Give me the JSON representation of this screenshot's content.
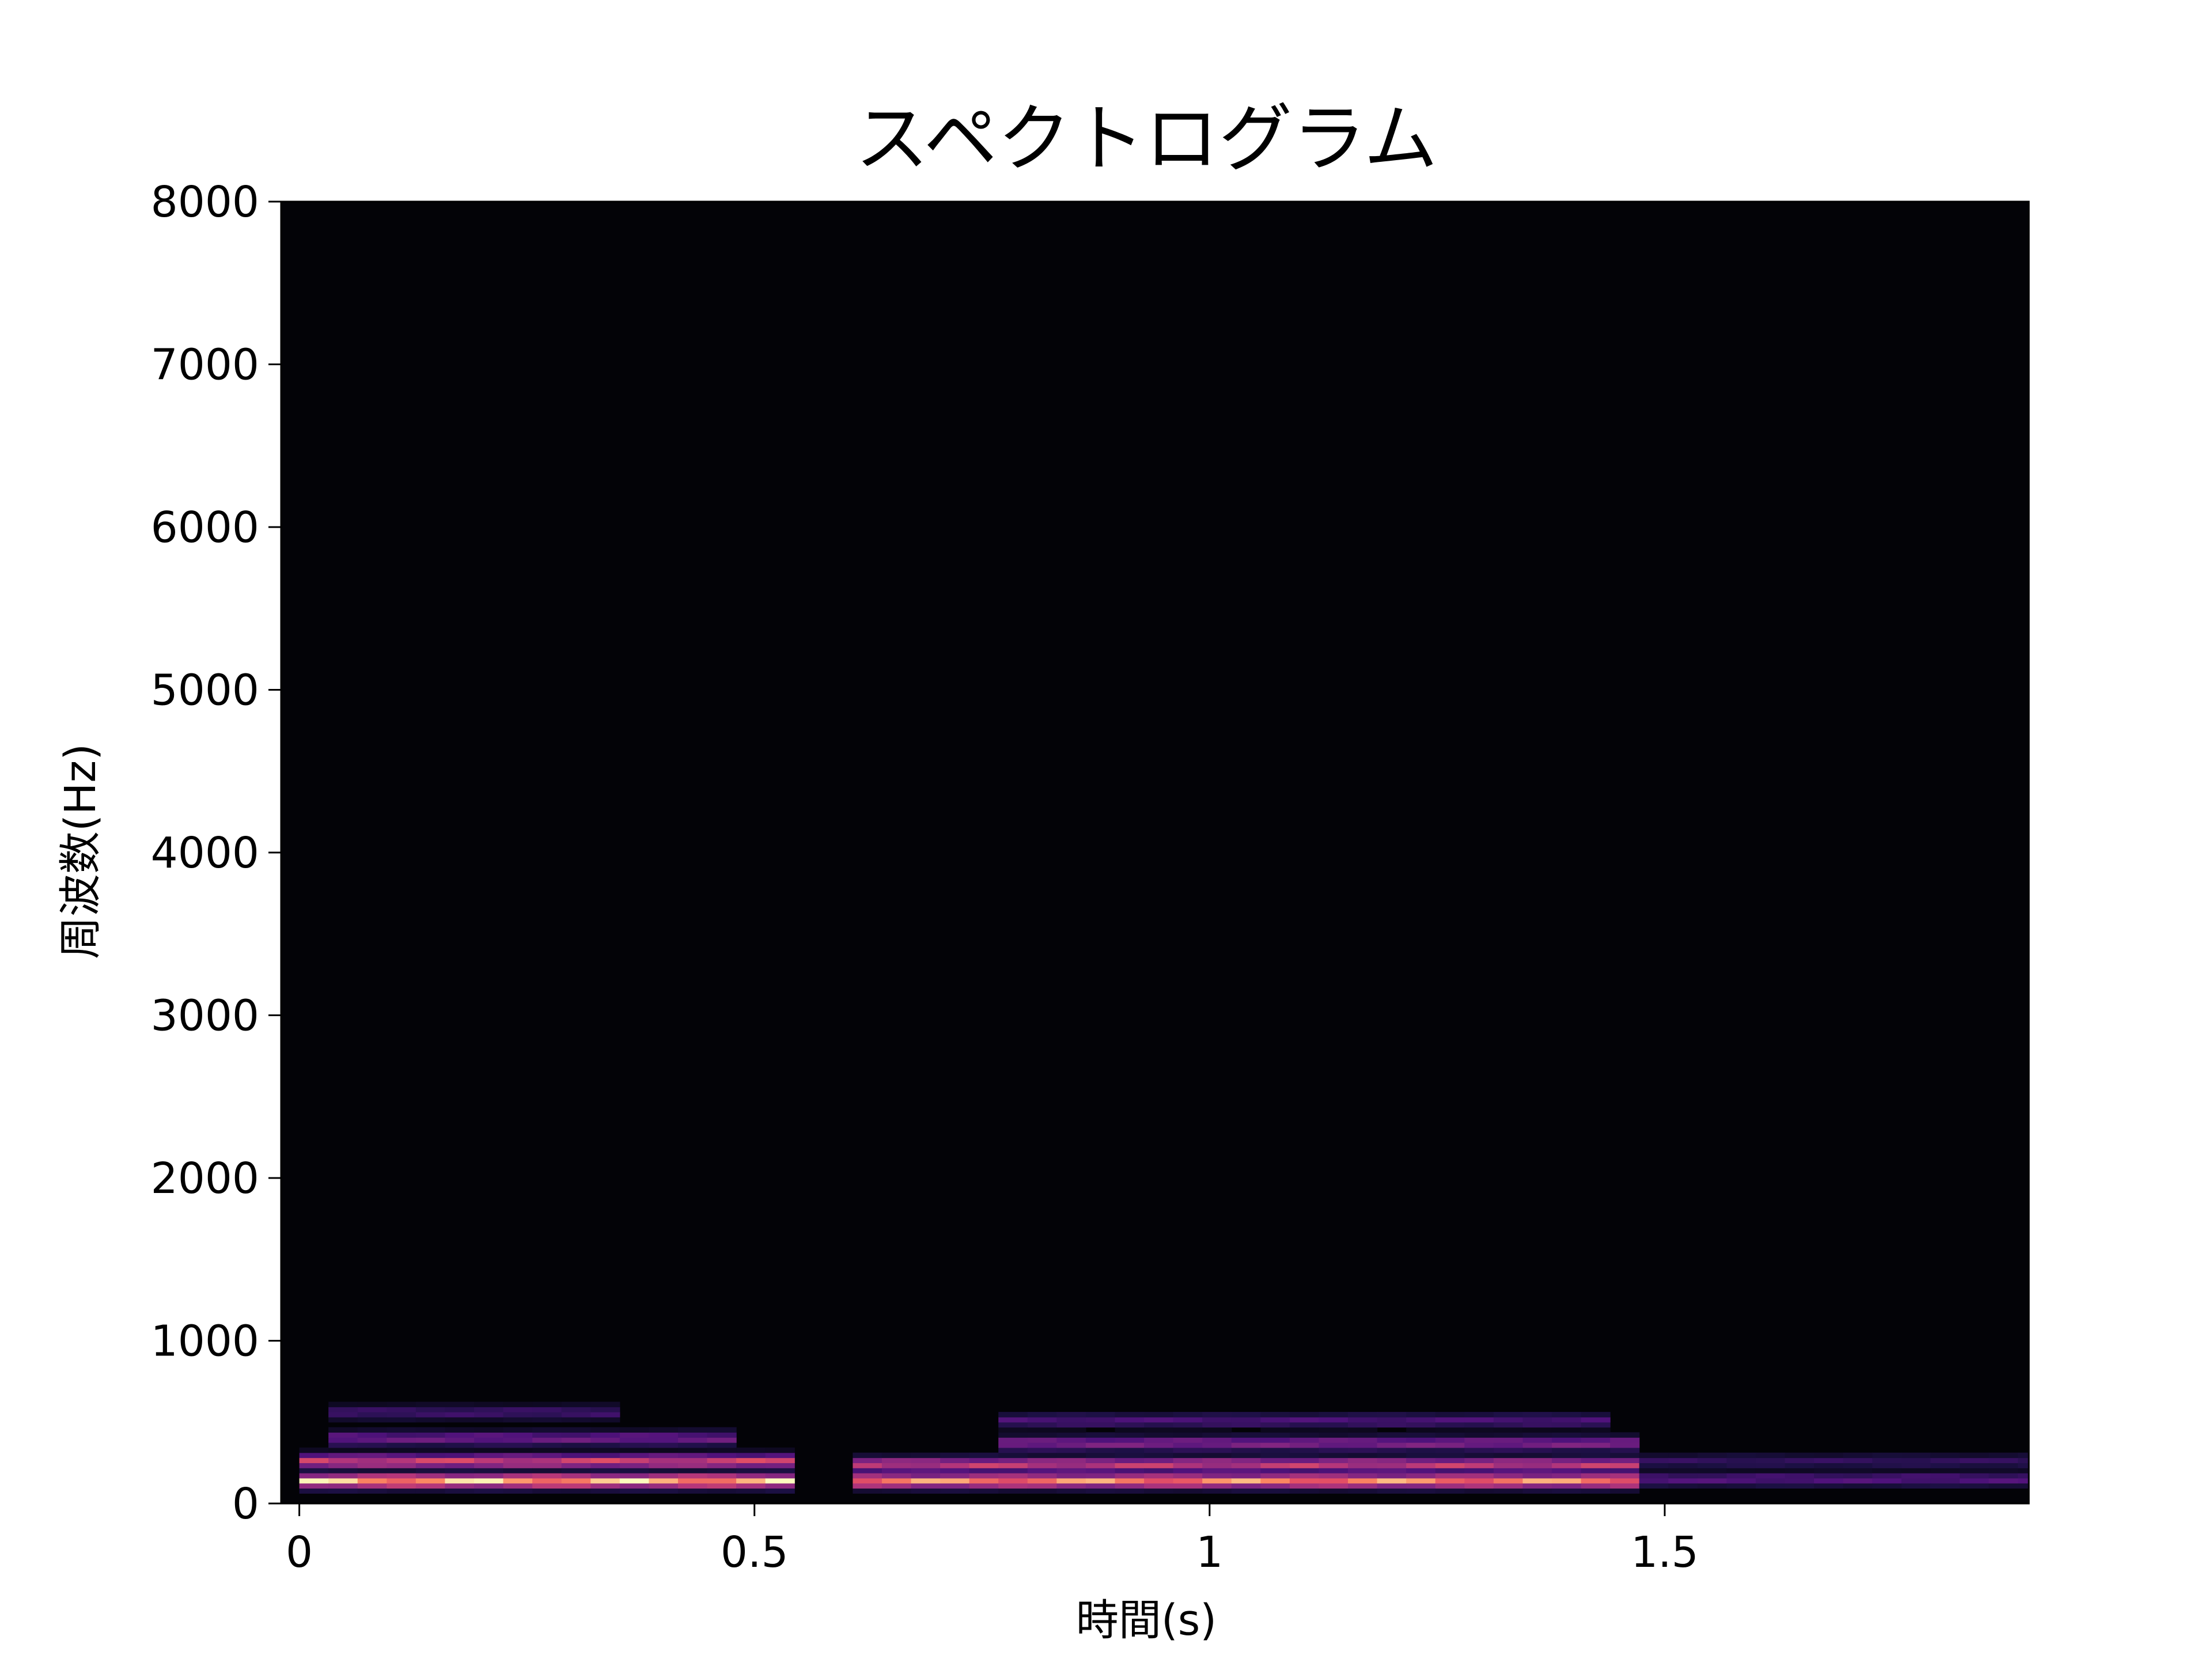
{
  "chart_data": {
    "type": "heatmap",
    "title": "スペクトログラム",
    "xlabel": "時間(s)",
    "ylabel": "周波数(Hz)",
    "xlim": [
      -0.02,
      1.9
    ],
    "ylim": [
      0,
      8000
    ],
    "x_ticks": [
      0,
      0.5,
      1,
      1.5
    ],
    "x_tick_labels": [
      "0",
      "0.5",
      "1",
      "1.5"
    ],
    "y_ticks": [
      0,
      1000,
      2000,
      3000,
      4000,
      5000,
      6000,
      7000,
      8000
    ],
    "y_tick_labels": [
      "0",
      "1000",
      "2000",
      "3000",
      "4000",
      "5000",
      "6000",
      "7000",
      "8000"
    ],
    "colormap": "magma",
    "background_color": "#030307",
    "grid": false,
    "bands": [
      {
        "t_start": 0.0,
        "t_end": 0.52,
        "freq_hz": 140,
        "intensity": 1.0
      },
      {
        "t_start": 0.0,
        "t_end": 0.52,
        "freq_hz": 260,
        "intensity": 0.72
      },
      {
        "t_start": 0.05,
        "t_end": 0.45,
        "freq_hz": 400,
        "intensity": 0.42
      },
      {
        "t_start": 0.05,
        "t_end": 0.33,
        "freq_hz": 560,
        "intensity": 0.28
      },
      {
        "t_start": 0.62,
        "t_end": 1.45,
        "freq_hz": 140,
        "intensity": 0.92
      },
      {
        "t_start": 0.62,
        "t_end": 1.45,
        "freq_hz": 240,
        "intensity": 0.68
      },
      {
        "t_start": 0.78,
        "t_end": 1.45,
        "freq_hz": 370,
        "intensity": 0.48
      },
      {
        "t_start": 0.78,
        "t_end": 1.42,
        "freq_hz": 510,
        "intensity": 0.32
      },
      {
        "t_start": 1.45,
        "t_end": 1.9,
        "freq_hz": 150,
        "intensity": 0.34
      },
      {
        "t_start": 1.45,
        "t_end": 1.9,
        "freq_hz": 260,
        "intensity": 0.24
      }
    ]
  }
}
